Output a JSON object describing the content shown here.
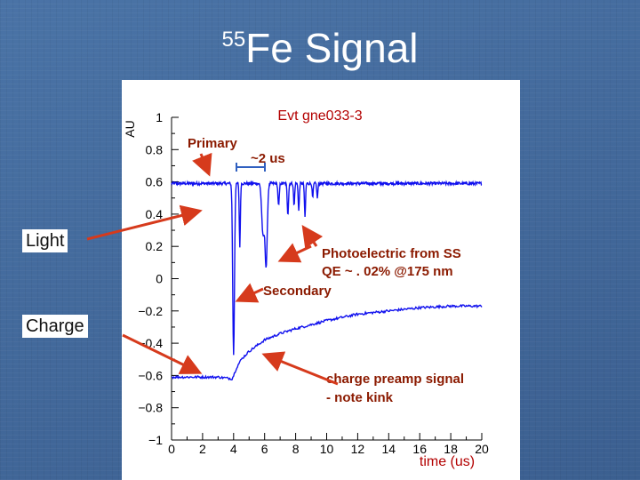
{
  "slide": {
    "title_superscript": "55",
    "title_main": "Fe Signal"
  },
  "labels": {
    "light": "Light",
    "charge": "Charge"
  },
  "chart_data": {
    "type": "line",
    "title": "Evt gne033-3",
    "xlabel": "time (us)",
    "ylabel": "AU",
    "xlim": [
      0,
      20
    ],
    "ylim": [
      -1,
      1
    ],
    "x_ticks": [
      0,
      2,
      4,
      6,
      8,
      10,
      12,
      14,
      16,
      18,
      20
    ],
    "y_ticks": [
      1,
      0.8,
      0.6,
      0.4,
      0.2,
      0,
      -0.2,
      -0.4,
      -0.6,
      -0.8,
      -1
    ],
    "y_tick_labels": [
      "1",
      "0.8",
      "0.6",
      "0.4",
      "0.2",
      "0",
      "−0.2",
      "−0.4",
      "−0.6",
      "−0.8",
      "−1"
    ],
    "line_color": "#1010ee",
    "annotation_color": "#8b1a00",
    "arrow_color": "#d63a1c",
    "series": [
      {
        "baseline": 0.59,
        "pulses": [
          {
            "x": 4.0,
            "y": -0.47,
            "w": 0.08
          },
          {
            "x": 4.4,
            "y": 0.2,
            "w": 0.05
          },
          {
            "x": 5.9,
            "y": 0.27,
            "w": 0.12
          },
          {
            "x": 6.1,
            "y": 0.09,
            "w": 0.1
          },
          {
            "x": 6.9,
            "y": 0.45,
            "w": 0.06
          },
          {
            "x": 7.5,
            "y": 0.4,
            "w": 0.06
          },
          {
            "x": 7.9,
            "y": 0.45,
            "w": 0.05
          },
          {
            "x": 8.2,
            "y": 0.42,
            "w": 0.05
          },
          {
            "x": 8.6,
            "y": 0.38,
            "w": 0.05
          },
          {
            "x": 9.1,
            "y": 0.5,
            "w": 0.05
          },
          {
            "x": 9.4,
            "y": 0.5,
            "w": 0.05
          }
        ]
      },
      {
        "points": [
          [
            0.0,
            -0.61
          ],
          [
            2.0,
            -0.61
          ],
          [
            3.0,
            -0.61
          ],
          [
            3.9,
            -0.62
          ],
          [
            4.0,
            -0.6
          ],
          [
            4.2,
            -0.55
          ],
          [
            4.5,
            -0.5
          ],
          [
            5.0,
            -0.45
          ],
          [
            6.0,
            -0.38
          ],
          [
            7.0,
            -0.34
          ],
          [
            8.0,
            -0.31
          ],
          [
            10.0,
            -0.26
          ],
          [
            12.0,
            -0.22
          ],
          [
            14.0,
            -0.2
          ],
          [
            16.0,
            -0.18
          ],
          [
            18.0,
            -0.17
          ],
          [
            20.0,
            -0.17
          ]
        ]
      }
    ],
    "annotations": {
      "primary": "Primary",
      "width": "~2 us",
      "photoelectric_line1": "Photoelectric from SS",
      "photoelectric_line2": "QE ~ . 02% @175 nm",
      "secondary": "Secondary",
      "preamp_line1": "charge preamp signal",
      "preamp_line2": "- note kink"
    }
  }
}
